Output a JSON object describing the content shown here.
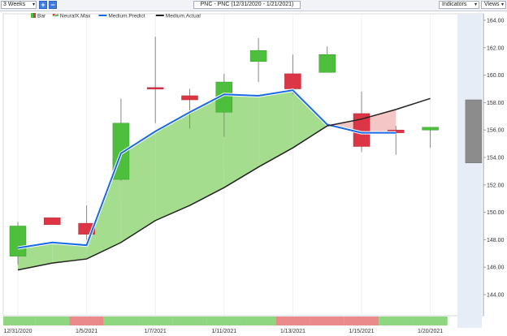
{
  "toolbar": {
    "period_value": "3 Weeks",
    "zoom_in_label": "+",
    "zoom_out_label": "−",
    "title": "PNC - PNC (12/31/2020 - 1/21/2021)",
    "indicators_label": "Indicators",
    "views_label": "Views",
    "dropdown_arrow": "▾"
  },
  "colors": {
    "bullish": "#4dbf3c",
    "bearish": "#dc3545",
    "predict_line": "#1a6ae8",
    "actual_line": "#222222",
    "band_up": "#a5dd8f",
    "band_down": "#f5c6c6",
    "future_zone": "#e6edf6",
    "forecast_candle": "#8c8c8c"
  },
  "chart_data": {
    "type": "candlestick",
    "legend": [
      {
        "name": "Bar",
        "kind": "candle"
      },
      {
        "name": "NeuralX.Max",
        "kind": "arrow"
      },
      {
        "name": "Medium.Predict",
        "kind": "line",
        "color": "#1a6ae8"
      },
      {
        "name": "Medium.Actual",
        "kind": "line",
        "color": "#222222"
      }
    ],
    "x_labels": [
      "12/31/2020",
      "1/5/2021",
      "1/7/2021",
      "1/11/2021",
      "1/13/2021",
      "1/15/2021",
      "1/20/2021"
    ],
    "y_ticks": [
      144,
      146,
      148,
      150,
      152,
      154,
      156,
      158,
      160,
      162,
      164
    ],
    "ylim": [
      144,
      164
    ],
    "candles": [
      {
        "open": 146.8,
        "high": 149.3,
        "low": 146.2,
        "close": 149.0
      },
      {
        "open": 149.6,
        "high": 149.6,
        "low": 149.1,
        "close": 149.1
      },
      {
        "open": 149.2,
        "high": 150.5,
        "low": 148.0,
        "close": 148.4
      },
      {
        "open": 152.4,
        "high": 158.3,
        "low": 152.3,
        "close": 156.5
      },
      {
        "open": 159.1,
        "high": 162.8,
        "low": 156.5,
        "close": 159.0
      },
      {
        "open": 158.5,
        "high": 159.0,
        "low": 156.1,
        "close": 158.2
      },
      {
        "open": 157.3,
        "high": 160.1,
        "low": 155.5,
        "close": 159.5
      },
      {
        "open": 161.0,
        "high": 162.7,
        "low": 159.5,
        "close": 161.8
      },
      {
        "open": 160.1,
        "high": 161.5,
        "low": 158.6,
        "close": 159.0
      },
      {
        "open": 160.2,
        "high": 162.1,
        "low": 160.2,
        "close": 161.5
      },
      {
        "open": 157.2,
        "high": 158.8,
        "low": 154.4,
        "close": 154.8
      },
      {
        "open": 156.0,
        "high": 156.3,
        "low": 154.2,
        "close": 155.8
      },
      {
        "open": 156.0,
        "high": 156.2,
        "low": 154.7,
        "close": 156.2
      }
    ],
    "forecast_bar": {
      "top": 158.2,
      "bottom": 153.6
    },
    "series": [
      {
        "name": "Medium.Predict",
        "values": [
          147.4,
          147.8,
          147.6,
          154.3,
          155.9,
          157.3,
          158.6,
          158.5,
          158.9,
          156.4,
          155.8,
          155.8
        ]
      },
      {
        "name": "Medium.Actual",
        "values": [
          145.8,
          146.3,
          146.6,
          147.8,
          149.4,
          150.5,
          151.8,
          153.3,
          154.7,
          156.3,
          156.8,
          157.5,
          158.3
        ]
      }
    ],
    "signal_bar": [
      "green",
      "green",
      "red",
      "green",
      "green",
      "green",
      "green",
      "green",
      "red",
      "red",
      "red",
      "green",
      "green"
    ]
  }
}
